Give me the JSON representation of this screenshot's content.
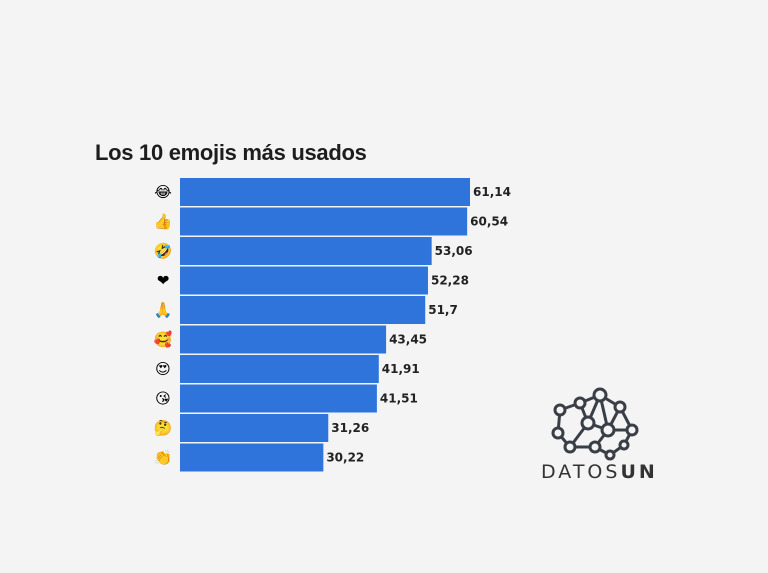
{
  "chart_data": {
    "type": "bar",
    "orientation": "horizontal",
    "title": "Los 10 emojis más usados",
    "categories": [
      "joy",
      "thumbs-up",
      "rofl",
      "heart",
      "pray",
      "smiling-hearts",
      "heart-eyes",
      "kissing",
      "thinking",
      "clapping"
    ],
    "icons": [
      "😂",
      "👍",
      "🤣",
      "❤",
      "🙏",
      "🥰",
      "😍",
      "😘",
      "🤔",
      "👏"
    ],
    "values": [
      61.14,
      60.54,
      53.06,
      52.28,
      51.7,
      43.45,
      41.91,
      41.51,
      31.26,
      30.22
    ],
    "value_labels": [
      "61,14",
      "60,54",
      "53,06",
      "52,28",
      "51,7",
      "43,45",
      "41,91",
      "41,51",
      "31,26",
      "30,22"
    ],
    "xlim": [
      0,
      61.14
    ],
    "bar_color": "#2e74db",
    "grid": false,
    "legend": false
  },
  "brand": {
    "name_light": "DATOS",
    "name_bold": "UN",
    "logo_icon": "network-brain-icon"
  }
}
